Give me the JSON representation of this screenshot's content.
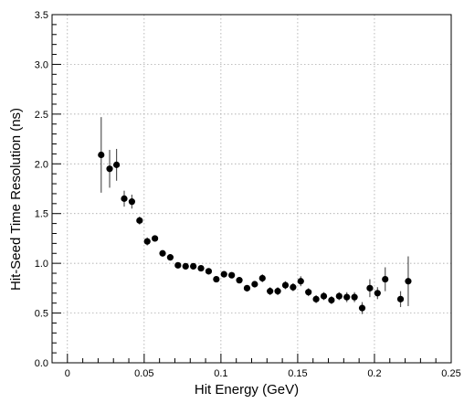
{
  "chart_data": {
    "type": "scatter",
    "title": "",
    "xlabel": "Hit  Energy  (GeV)",
    "ylabel": "Hit-Seed Time Resolution  (ns)",
    "xlim": [
      -0.01,
      0.25
    ],
    "ylim": [
      0,
      3.5
    ],
    "grid": true,
    "x_ticks": [
      0,
      0.05,
      0.1,
      0.15,
      0.2,
      0.25
    ],
    "x_tick_labels": [
      "0",
      "0.05",
      "0.1",
      "0.15",
      "0.2",
      "0.25"
    ],
    "y_ticks": [
      0,
      0.5,
      1.0,
      1.5,
      2.0,
      2.5,
      3.0,
      3.5
    ],
    "y_tick_labels": [
      "0.0",
      "0.5",
      "1.0",
      "1.5",
      "2.0",
      "2.5",
      "3.0",
      "3.5"
    ],
    "series": [
      {
        "points": [
          {
            "x": 0.022,
            "y": 2.09,
            "err": 0.38
          },
          {
            "x": 0.0275,
            "y": 1.95,
            "err": 0.19
          },
          {
            "x": 0.032,
            "y": 1.99,
            "err": 0.16
          },
          {
            "x": 0.037,
            "y": 1.65,
            "err": 0.08
          },
          {
            "x": 0.042,
            "y": 1.62,
            "err": 0.07
          },
          {
            "x": 0.047,
            "y": 1.43,
            "err": 0.04
          },
          {
            "x": 0.052,
            "y": 1.22,
            "err": 0.04
          },
          {
            "x": 0.057,
            "y": 1.25,
            "err": 0.03
          },
          {
            "x": 0.062,
            "y": 1.1,
            "err": 0.03
          },
          {
            "x": 0.067,
            "y": 1.06,
            "err": 0.03
          },
          {
            "x": 0.072,
            "y": 0.98,
            "err": 0.03
          },
          {
            "x": 0.077,
            "y": 0.97,
            "err": 0.03
          },
          {
            "x": 0.082,
            "y": 0.97,
            "err": 0.03
          },
          {
            "x": 0.087,
            "y": 0.95,
            "err": 0.03
          },
          {
            "x": 0.092,
            "y": 0.92,
            "err": 0.03
          },
          {
            "x": 0.097,
            "y": 0.84,
            "err": 0.03
          },
          {
            "x": 0.102,
            "y": 0.89,
            "err": 0.03
          },
          {
            "x": 0.107,
            "y": 0.88,
            "err": 0.03
          },
          {
            "x": 0.112,
            "y": 0.83,
            "err": 0.03
          },
          {
            "x": 0.117,
            "y": 0.75,
            "err": 0.03
          },
          {
            "x": 0.122,
            "y": 0.79,
            "err": 0.03
          },
          {
            "x": 0.127,
            "y": 0.85,
            "err": 0.04
          },
          {
            "x": 0.132,
            "y": 0.72,
            "err": 0.04
          },
          {
            "x": 0.137,
            "y": 0.72,
            "err": 0.04
          },
          {
            "x": 0.142,
            "y": 0.78,
            "err": 0.04
          },
          {
            "x": 0.147,
            "y": 0.76,
            "err": 0.04
          },
          {
            "x": 0.152,
            "y": 0.82,
            "err": 0.05
          },
          {
            "x": 0.157,
            "y": 0.71,
            "err": 0.04
          },
          {
            "x": 0.162,
            "y": 0.64,
            "err": 0.04
          },
          {
            "x": 0.167,
            "y": 0.67,
            "err": 0.04
          },
          {
            "x": 0.172,
            "y": 0.63,
            "err": 0.04
          },
          {
            "x": 0.177,
            "y": 0.67,
            "err": 0.04
          },
          {
            "x": 0.182,
            "y": 0.66,
            "err": 0.05
          },
          {
            "x": 0.187,
            "y": 0.66,
            "err": 0.05
          },
          {
            "x": 0.192,
            "y": 0.55,
            "err": 0.06
          },
          {
            "x": 0.197,
            "y": 0.75,
            "err": 0.09
          },
          {
            "x": 0.202,
            "y": 0.7,
            "err": 0.06
          },
          {
            "x": 0.207,
            "y": 0.84,
            "err": 0.12
          },
          {
            "x": 0.217,
            "y": 0.64,
            "err": 0.08
          },
          {
            "x": 0.222,
            "y": 0.82,
            "err": 0.25
          }
        ]
      }
    ]
  }
}
